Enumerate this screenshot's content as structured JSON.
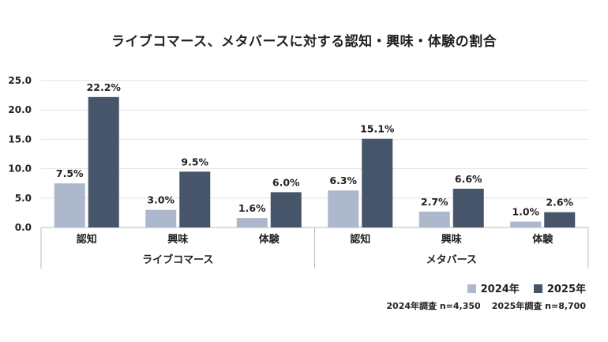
{
  "chart_data": {
    "type": "bar",
    "title": "ライブコマース、メタバースに対する認知・興味・体験の割合",
    "groups": [
      {
        "name": "ライブコマース",
        "categories": [
          "認知",
          "興味",
          "体験"
        ]
      },
      {
        "name": "メタバース",
        "categories": [
          "認知",
          "興味",
          "体験"
        ]
      }
    ],
    "categories": [
      "認知",
      "興味",
      "体験",
      "認知",
      "興味",
      "体験"
    ],
    "series": [
      {
        "name": "2024年",
        "color": "#adb8cc",
        "values": [
          7.5,
          3.0,
          1.6,
          6.3,
          2.7,
          1.0
        ],
        "labels": [
          "7.5%",
          "3.0%",
          "1.6%",
          "6.3%",
          "2.7%",
          "1.0%"
        ]
      },
      {
        "name": "2025年",
        "color": "#465569",
        "values": [
          22.2,
          9.5,
          6.0,
          15.1,
          6.6,
          2.6
        ],
        "labels": [
          "22.2%",
          "9.5%",
          "6.0%",
          "15.1%",
          "6.6%",
          "2.6%"
        ]
      }
    ],
    "ylim": [
      0,
      25
    ],
    "yticks": [
      "0.0",
      "5.0",
      "10.0",
      "15.0",
      "20.0",
      "25.0"
    ],
    "grid": true,
    "legend_position": "bottom-right",
    "xlabel": "",
    "ylabel": ""
  },
  "notes": [
    "2024年調査 n=4,350",
    "2025年調査 n=8,700"
  ]
}
